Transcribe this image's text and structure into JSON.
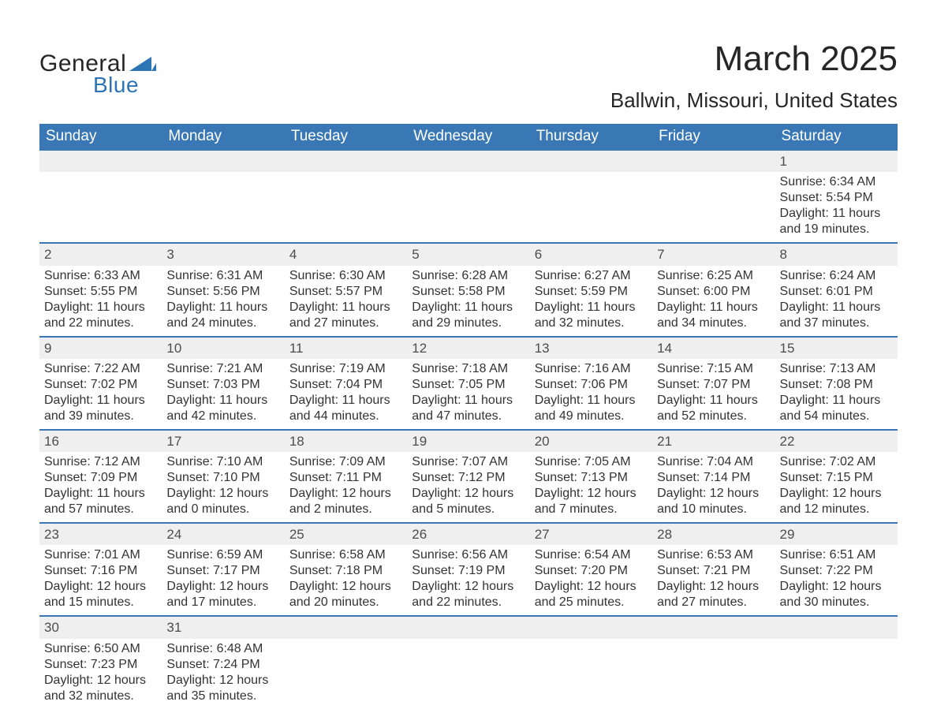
{
  "brand": {
    "general": "General",
    "blue": "Blue",
    "logo_color": "#2e75b6"
  },
  "title": "March 2025",
  "location": "Ballwin, Missouri, United States",
  "colors": {
    "header_bg": "#3a78b5",
    "header_text": "#ffffff",
    "daynum_bg": "#efefef",
    "border": "#3a78b5",
    "text": "#333333",
    "background": "#ffffff"
  },
  "weekdays": [
    "Sunday",
    "Monday",
    "Tuesday",
    "Wednesday",
    "Thursday",
    "Friday",
    "Saturday"
  ],
  "weeks": [
    [
      null,
      null,
      null,
      null,
      null,
      null,
      {
        "n": "1",
        "sr": "Sunrise: 6:34 AM",
        "ss": "Sunset: 5:54 PM",
        "d1": "Daylight: 11 hours",
        "d2": "and 19 minutes."
      }
    ],
    [
      {
        "n": "2",
        "sr": "Sunrise: 6:33 AM",
        "ss": "Sunset: 5:55 PM",
        "d1": "Daylight: 11 hours",
        "d2": "and 22 minutes."
      },
      {
        "n": "3",
        "sr": "Sunrise: 6:31 AM",
        "ss": "Sunset: 5:56 PM",
        "d1": "Daylight: 11 hours",
        "d2": "and 24 minutes."
      },
      {
        "n": "4",
        "sr": "Sunrise: 6:30 AM",
        "ss": "Sunset: 5:57 PM",
        "d1": "Daylight: 11 hours",
        "d2": "and 27 minutes."
      },
      {
        "n": "5",
        "sr": "Sunrise: 6:28 AM",
        "ss": "Sunset: 5:58 PM",
        "d1": "Daylight: 11 hours",
        "d2": "and 29 minutes."
      },
      {
        "n": "6",
        "sr": "Sunrise: 6:27 AM",
        "ss": "Sunset: 5:59 PM",
        "d1": "Daylight: 11 hours",
        "d2": "and 32 minutes."
      },
      {
        "n": "7",
        "sr": "Sunrise: 6:25 AM",
        "ss": "Sunset: 6:00 PM",
        "d1": "Daylight: 11 hours",
        "d2": "and 34 minutes."
      },
      {
        "n": "8",
        "sr": "Sunrise: 6:24 AM",
        "ss": "Sunset: 6:01 PM",
        "d1": "Daylight: 11 hours",
        "d2": "and 37 minutes."
      }
    ],
    [
      {
        "n": "9",
        "sr": "Sunrise: 7:22 AM",
        "ss": "Sunset: 7:02 PM",
        "d1": "Daylight: 11 hours",
        "d2": "and 39 minutes."
      },
      {
        "n": "10",
        "sr": "Sunrise: 7:21 AM",
        "ss": "Sunset: 7:03 PM",
        "d1": "Daylight: 11 hours",
        "d2": "and 42 minutes."
      },
      {
        "n": "11",
        "sr": "Sunrise: 7:19 AM",
        "ss": "Sunset: 7:04 PM",
        "d1": "Daylight: 11 hours",
        "d2": "and 44 minutes."
      },
      {
        "n": "12",
        "sr": "Sunrise: 7:18 AM",
        "ss": "Sunset: 7:05 PM",
        "d1": "Daylight: 11 hours",
        "d2": "and 47 minutes."
      },
      {
        "n": "13",
        "sr": "Sunrise: 7:16 AM",
        "ss": "Sunset: 7:06 PM",
        "d1": "Daylight: 11 hours",
        "d2": "and 49 minutes."
      },
      {
        "n": "14",
        "sr": "Sunrise: 7:15 AM",
        "ss": "Sunset: 7:07 PM",
        "d1": "Daylight: 11 hours",
        "d2": "and 52 minutes."
      },
      {
        "n": "15",
        "sr": "Sunrise: 7:13 AM",
        "ss": "Sunset: 7:08 PM",
        "d1": "Daylight: 11 hours",
        "d2": "and 54 minutes."
      }
    ],
    [
      {
        "n": "16",
        "sr": "Sunrise: 7:12 AM",
        "ss": "Sunset: 7:09 PM",
        "d1": "Daylight: 11 hours",
        "d2": "and 57 minutes."
      },
      {
        "n": "17",
        "sr": "Sunrise: 7:10 AM",
        "ss": "Sunset: 7:10 PM",
        "d1": "Daylight: 12 hours",
        "d2": "and 0 minutes."
      },
      {
        "n": "18",
        "sr": "Sunrise: 7:09 AM",
        "ss": "Sunset: 7:11 PM",
        "d1": "Daylight: 12 hours",
        "d2": "and 2 minutes."
      },
      {
        "n": "19",
        "sr": "Sunrise: 7:07 AM",
        "ss": "Sunset: 7:12 PM",
        "d1": "Daylight: 12 hours",
        "d2": "and 5 minutes."
      },
      {
        "n": "20",
        "sr": "Sunrise: 7:05 AM",
        "ss": "Sunset: 7:13 PM",
        "d1": "Daylight: 12 hours",
        "d2": "and 7 minutes."
      },
      {
        "n": "21",
        "sr": "Sunrise: 7:04 AM",
        "ss": "Sunset: 7:14 PM",
        "d1": "Daylight: 12 hours",
        "d2": "and 10 minutes."
      },
      {
        "n": "22",
        "sr": "Sunrise: 7:02 AM",
        "ss": "Sunset: 7:15 PM",
        "d1": "Daylight: 12 hours",
        "d2": "and 12 minutes."
      }
    ],
    [
      {
        "n": "23",
        "sr": "Sunrise: 7:01 AM",
        "ss": "Sunset: 7:16 PM",
        "d1": "Daylight: 12 hours",
        "d2": "and 15 minutes."
      },
      {
        "n": "24",
        "sr": "Sunrise: 6:59 AM",
        "ss": "Sunset: 7:17 PM",
        "d1": "Daylight: 12 hours",
        "d2": "and 17 minutes."
      },
      {
        "n": "25",
        "sr": "Sunrise: 6:58 AM",
        "ss": "Sunset: 7:18 PM",
        "d1": "Daylight: 12 hours",
        "d2": "and 20 minutes."
      },
      {
        "n": "26",
        "sr": "Sunrise: 6:56 AM",
        "ss": "Sunset: 7:19 PM",
        "d1": "Daylight: 12 hours",
        "d2": "and 22 minutes."
      },
      {
        "n": "27",
        "sr": "Sunrise: 6:54 AM",
        "ss": "Sunset: 7:20 PM",
        "d1": "Daylight: 12 hours",
        "d2": "and 25 minutes."
      },
      {
        "n": "28",
        "sr": "Sunrise: 6:53 AM",
        "ss": "Sunset: 7:21 PM",
        "d1": "Daylight: 12 hours",
        "d2": "and 27 minutes."
      },
      {
        "n": "29",
        "sr": "Sunrise: 6:51 AM",
        "ss": "Sunset: 7:22 PM",
        "d1": "Daylight: 12 hours",
        "d2": "and 30 minutes."
      }
    ],
    [
      {
        "n": "30",
        "sr": "Sunrise: 6:50 AM",
        "ss": "Sunset: 7:23 PM",
        "d1": "Daylight: 12 hours",
        "d2": "and 32 minutes."
      },
      {
        "n": "31",
        "sr": "Sunrise: 6:48 AM",
        "ss": "Sunset: 7:24 PM",
        "d1": "Daylight: 12 hours",
        "d2": "and 35 minutes."
      },
      null,
      null,
      null,
      null,
      null
    ]
  ]
}
